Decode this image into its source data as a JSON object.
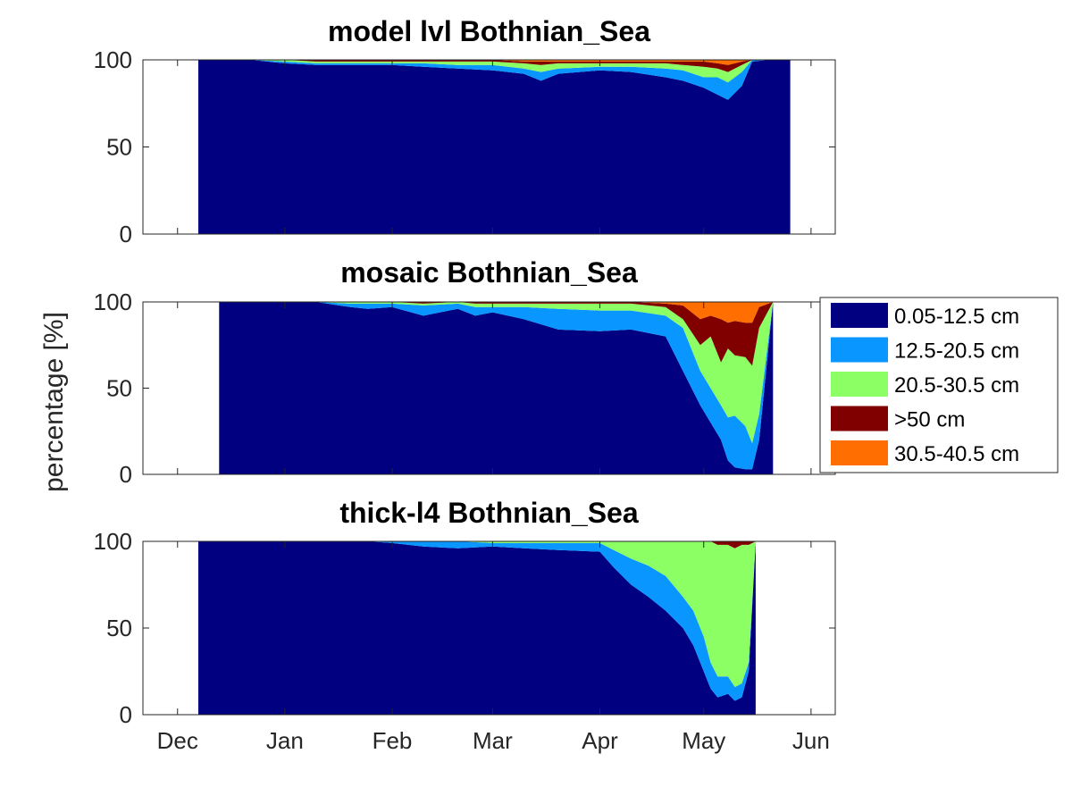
{
  "chart_data": {
    "type": "area",
    "ylabel": "percentage [%]",
    "x_tick_labels": [
      "Dec",
      "Jan",
      "Feb",
      "Mar",
      "Apr",
      "May",
      "Jun"
    ],
    "x_ticks": [
      "2015-12-01",
      "2016-01-01",
      "2016-02-01",
      "2016-03-01",
      "2016-04-01",
      "2016-05-01",
      "2016-06-01"
    ],
    "xlim": [
      "2015-11-21",
      "2016-06-08"
    ],
    "ylim": [
      0,
      100
    ],
    "y_ticks": [
      0,
      50,
      100
    ],
    "stacking": "stacked percentages, bottom to top in legend order",
    "legend": {
      "placement": "right of middle panel",
      "entries": [
        {
          "label": "0.05-12.5 cm",
          "color": "#000080"
        },
        {
          "label": "12.5-20.5 cm",
          "color": "#0a96ff"
        },
        {
          "label": "20.5-30.5 cm",
          "color": "#8cff64"
        },
        {
          "label": ">50 cm",
          "color": "#800000"
        },
        {
          "label": "30.5-40.5 cm",
          "color": "#ff6e00"
        }
      ]
    },
    "panels": [
      {
        "title": "model lvl Bothnian_Sea",
        "show_x_tick_labels": false,
        "data_start": "2015-12-07",
        "data_end": "2016-05-26",
        "dates": [
          "2015-12-07",
          "2015-12-12",
          "2015-12-22",
          "2016-01-01",
          "2016-01-10",
          "2016-01-20",
          "2016-02-01",
          "2016-02-10",
          "2016-02-20",
          "2016-03-01",
          "2016-03-10",
          "2016-03-15",
          "2016-03-20",
          "2016-04-01",
          "2016-04-10",
          "2016-04-20",
          "2016-04-25",
          "2016-05-01",
          "2016-05-05",
          "2016-05-08",
          "2016-05-12",
          "2016-05-15",
          "2016-05-20",
          "2016-05-26"
        ],
        "series": [
          {
            "values": [
              100,
              100,
              100,
              98,
              97,
              97,
              97,
              96,
              95,
              94,
              92,
              88,
              92,
              94,
              93,
              90,
              88,
              84,
              80,
              77,
              85,
              99,
              100,
              100
            ]
          },
          {
            "values": [
              0,
              0,
              0,
              1,
              1,
              1,
              1,
              2,
              2,
              3,
              3,
              5,
              3,
              2,
              3,
              5,
              6,
              6,
              10,
              10,
              8,
              1,
              0,
              0
            ]
          },
          {
            "values": [
              0,
              0,
              0,
              1,
              1,
              1,
              1,
              1,
              2,
              2,
              3,
              4,
              3,
              2,
              2,
              3,
              3,
              6,
              5,
              6,
              4,
              0,
              0,
              0
            ]
          },
          {
            "values": [
              0,
              0,
              0,
              0,
              1,
              1,
              1,
              1,
              1,
              1,
              1,
              2,
              1,
              1,
              1,
              1,
              2,
              3,
              3,
              4,
              2,
              0,
              0,
              0
            ]
          },
          {
            "values": [
              0,
              0,
              0,
              0,
              0,
              0,
              0,
              0,
              0,
              0,
              1,
              1,
              1,
              1,
              1,
              1,
              1,
              1,
              2,
              3,
              1,
              0,
              0,
              0
            ]
          }
        ]
      },
      {
        "title": "mosaic Bothnian_Sea",
        "show_x_tick_labels": false,
        "data_start": "2015-12-13",
        "data_end": "2016-05-21",
        "dates": [
          "2015-12-13",
          "2015-12-22",
          "2016-01-10",
          "2016-01-20",
          "2016-01-25",
          "2016-02-01",
          "2016-02-10",
          "2016-02-20",
          "2016-02-25",
          "2016-03-01",
          "2016-03-10",
          "2016-03-20",
          "2016-04-01",
          "2016-04-10",
          "2016-04-20",
          "2016-04-25",
          "2016-04-30",
          "2016-05-03",
          "2016-05-06",
          "2016-05-08",
          "2016-05-10",
          "2016-05-13",
          "2016-05-15",
          "2016-05-17",
          "2016-05-21"
        ],
        "series": [
          {
            "values": [
              100,
              100,
              100,
              97,
              96,
              97,
              92,
              96,
              92,
              94,
              90,
              84,
              83,
              84,
              80,
              60,
              40,
              30,
              20,
              8,
              4,
              3,
              3,
              20,
              100
            ]
          },
          {
            "values": [
              0,
              0,
              0,
              2,
              3,
              2,
              6,
              3,
              5,
              3,
              7,
              12,
              12,
              11,
              12,
              25,
              20,
              20,
              20,
              25,
              30,
              25,
              15,
              15,
              0
            ]
          },
          {
            "values": [
              0,
              0,
              0,
              1,
              1,
              1,
              1,
              1,
              2,
              2,
              2,
              3,
              4,
              4,
              5,
              5,
              15,
              30,
              25,
              40,
              35,
              40,
              45,
              50,
              0
            ]
          },
          {
            "values": [
              0,
              0,
              0,
              0,
              0,
              0,
              1,
              0,
              1,
              1,
              1,
              1,
              1,
              1,
              2,
              8,
              15,
              12,
              25,
              15,
              20,
              20,
              25,
              12,
              0
            ]
          },
          {
            "values": [
              0,
              0,
              0,
              0,
              0,
              0,
              0,
              0,
              0,
              0,
              0,
              0,
              0,
              0,
              1,
              2,
              10,
              8,
              10,
              12,
              11,
              12,
              12,
              3,
              0
            ]
          }
        ]
      },
      {
        "title": "thick-l4 Bothnian_Sea",
        "show_x_tick_labels": true,
        "data_start": "2015-12-07",
        "data_end": "2016-05-16",
        "dates": [
          "2015-12-07",
          "2015-12-12",
          "2016-01-10",
          "2016-01-25",
          "2016-02-01",
          "2016-02-10",
          "2016-02-20",
          "2016-03-01",
          "2016-03-10",
          "2016-03-20",
          "2016-04-01",
          "2016-04-05",
          "2016-04-10",
          "2016-04-15",
          "2016-04-20",
          "2016-04-25",
          "2016-04-28",
          "2016-05-01",
          "2016-05-03",
          "2016-05-05",
          "2016-05-08",
          "2016-05-10",
          "2016-05-12",
          "2016-05-14",
          "2016-05-16"
        ],
        "series": [
          {
            "values": [
              100,
              100,
              100,
              100,
              99,
              97,
              96,
              97,
              96,
              95,
              94,
              85,
              75,
              68,
              60,
              50,
              40,
              25,
              15,
              10,
              12,
              8,
              10,
              25,
              100
            ]
          },
          {
            "values": [
              0,
              0,
              0,
              0,
              1,
              3,
              4,
              2,
              3,
              4,
              5,
              10,
              15,
              18,
              20,
              18,
              20,
              20,
              15,
              12,
              10,
              8,
              8,
              5,
              0
            ]
          },
          {
            "values": [
              0,
              0,
              0,
              0,
              0,
              0,
              0,
              1,
              1,
              1,
              1,
              5,
              10,
              14,
              20,
              32,
              40,
              55,
              70,
              76,
              76,
              80,
              80,
              68,
              0
            ]
          },
          {
            "values": [
              0,
              0,
              0,
              0,
              0,
              0,
              0,
              0,
              0,
              0,
              0,
              0,
              0,
              0,
              0,
              0,
              0,
              0,
              0,
              2,
              2,
              4,
              2,
              2,
              0
            ]
          },
          {
            "values": [
              0,
              0,
              0,
              0,
              0,
              0,
              0,
              0,
              0,
              0,
              0,
              0,
              0,
              0,
              0,
              0,
              0,
              0,
              0,
              0,
              0,
              0,
              0,
              0,
              0
            ]
          }
        ]
      }
    ]
  }
}
